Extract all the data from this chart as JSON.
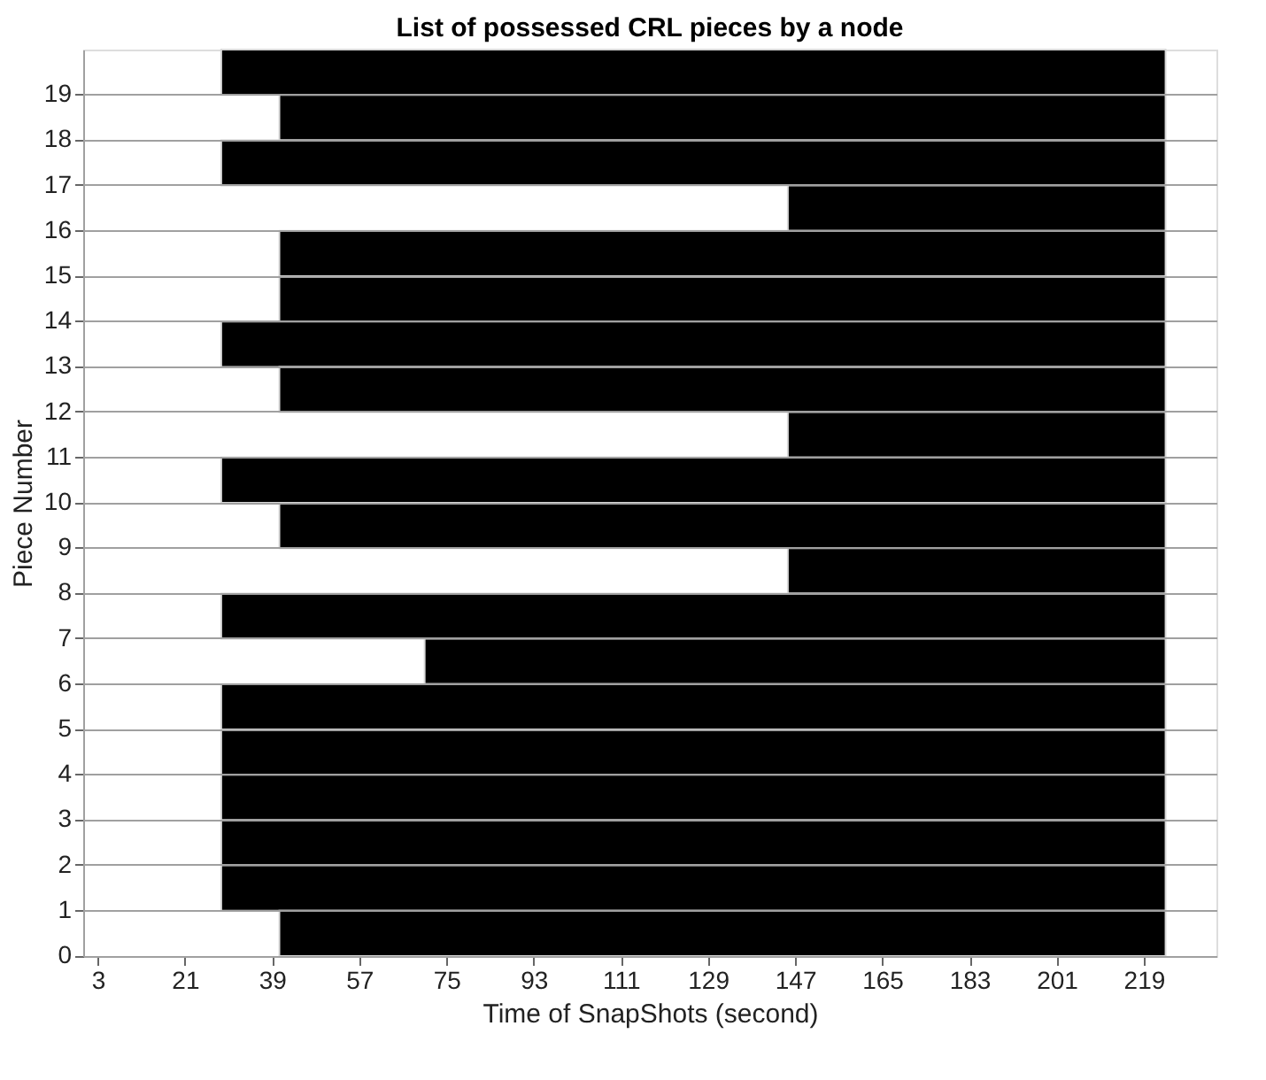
{
  "chart_data": {
    "type": "bar",
    "orientation": "horizontal",
    "title": "List of possessed CRL pieces by a node",
    "xlabel": "Time of SnapShots (second)",
    "ylabel": "Piece Number",
    "categories": [
      "19",
      "18",
      "17",
      "16",
      "15",
      "14",
      "13",
      "12",
      "11",
      "10",
      "9",
      "8",
      "7",
      "6",
      "5",
      "4",
      "3",
      "2",
      "1",
      "0"
    ],
    "base": [
      28.5,
      40.5,
      28.5,
      145.5,
      40.5,
      40.5,
      28.5,
      40.5,
      145.5,
      28.5,
      40.5,
      145.5,
      28.5,
      70.5,
      28.5,
      28.5,
      28.5,
      28.5,
      28.5,
      40.5
    ],
    "values": [
      195,
      183,
      195,
      78,
      183,
      183,
      195,
      183,
      78,
      195,
      183,
      78,
      195,
      153,
      195,
      195,
      195,
      195,
      195,
      183
    ],
    "color": "#000000",
    "xlim": [
      0,
      234
    ],
    "xticks": [
      3,
      21,
      39,
      57,
      75,
      93,
      111,
      129,
      147,
      165,
      183,
      201,
      219
    ],
    "grid": "y"
  }
}
